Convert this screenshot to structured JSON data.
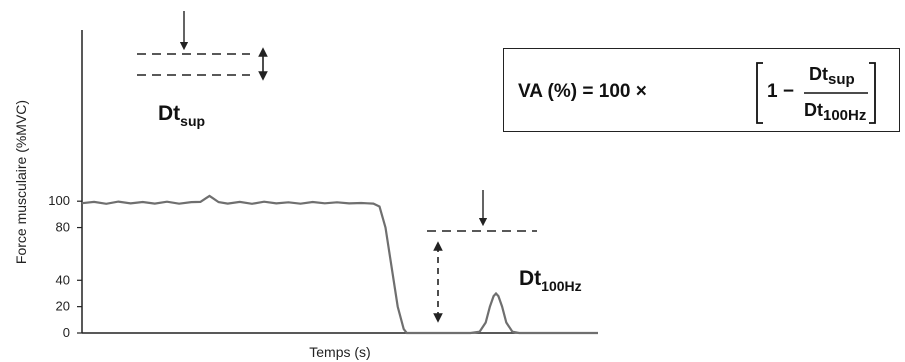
{
  "chart_data": {
    "type": "line",
    "xlabel": "Temps (s)",
    "ylabel": "Force musculaire (%MVC)",
    "yticks": [
      0,
      20,
      40,
      80,
      100
    ],
    "ylim": [
      0,
      110
    ],
    "grid": false,
    "series": [
      {
        "values": [
          [
            0,
            98.5
          ],
          [
            2,
            99.5
          ],
          [
            4,
            98
          ],
          [
            6,
            99.7
          ],
          [
            8,
            98.3
          ],
          [
            10,
            99.4
          ],
          [
            12,
            98.2
          ],
          [
            14,
            99.6
          ],
          [
            16,
            98.1
          ],
          [
            18,
            99.3
          ],
          [
            19.5,
            99.5
          ],
          [
            20.5,
            102.5
          ],
          [
            21,
            104
          ],
          [
            21.5,
            102.5
          ],
          [
            22.5,
            99.3
          ],
          [
            24,
            98.2
          ],
          [
            26,
            99.5
          ],
          [
            28,
            98
          ],
          [
            30,
            99.6
          ],
          [
            32,
            98.3
          ],
          [
            34,
            99.2
          ],
          [
            36,
            98.1
          ],
          [
            38,
            99.4
          ],
          [
            40,
            98.4
          ],
          [
            42,
            99.2
          ],
          [
            44,
            98.3
          ],
          [
            46,
            98.6
          ],
          [
            47,
            98.4
          ],
          [
            48,
            98.2
          ],
          [
            49,
            96
          ],
          [
            50,
            80
          ],
          [
            51,
            50
          ],
          [
            52,
            20
          ],
          [
            53,
            3
          ],
          [
            53.5,
            0
          ],
          [
            54,
            0
          ],
          [
            56,
            0
          ],
          [
            58,
            0
          ],
          [
            60,
            0
          ],
          [
            62,
            0
          ],
          [
            64,
            0
          ],
          [
            65.5,
            1
          ],
          [
            66.5,
            8
          ],
          [
            67.2,
            20
          ],
          [
            67.8,
            28
          ],
          [
            68.2,
            30
          ],
          [
            68.6,
            28
          ],
          [
            69.2,
            20
          ],
          [
            69.9,
            8
          ],
          [
            70.9,
            1
          ],
          [
            72,
            0
          ],
          [
            76,
            0
          ],
          [
            80,
            0
          ],
          [
            85,
            0
          ]
        ]
      }
    ],
    "annotations": [
      {
        "text": "Dt",
        "subscript": "sup"
      },
      {
        "text": "Dt",
        "subscript": "100Hz"
      }
    ],
    "formula": {
      "lhs": "VA (%) = 100 ×",
      "one_minus": "1 −",
      "numerator": "Dt",
      "numerator_sub": "sup",
      "denominator": "Dt",
      "denominator_sub": "100Hz"
    }
  }
}
